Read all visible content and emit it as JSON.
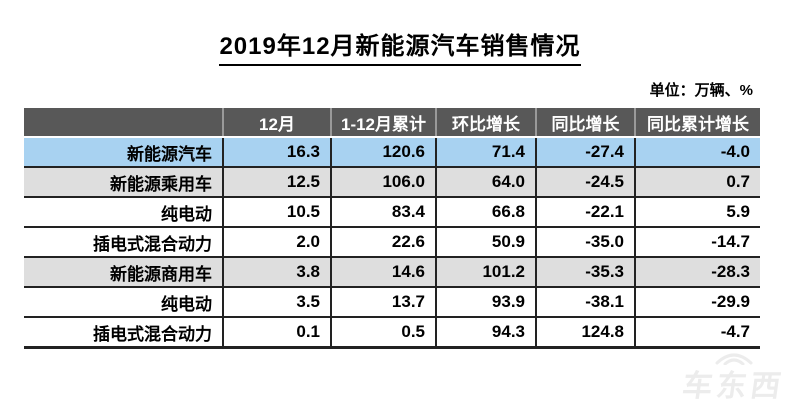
{
  "title": "2019年12月新能源汽车销售情况",
  "unit_label": "单位：万辆、%",
  "watermark": {
    "text": "车东西"
  },
  "colors": {
    "header_bg": "#585858",
    "header_text": "#ffffff",
    "row_highlight": "#a8d2f1",
    "row_group": "#dedede",
    "border": "#222222"
  },
  "chart_data": {
    "type": "table",
    "title": "2019年12月新能源汽车销售情况",
    "unit": "万辆、%",
    "columns": [
      "",
      "12月",
      "1-12月累计",
      "环比增长",
      "同比增长",
      "同比累计增长"
    ],
    "rows": [
      {
        "label": "新能源汽车",
        "indent": 0,
        "style": "highlight",
        "values": [
          "16.3",
          "120.6",
          "71.4",
          "-27.4",
          "-4.0"
        ]
      },
      {
        "label": "新能源乘用车",
        "indent": 1,
        "style": "group",
        "values": [
          "12.5",
          "106.0",
          "64.0",
          "-24.5",
          "0.7"
        ]
      },
      {
        "label": "纯电动",
        "indent": 2,
        "style": "plain",
        "values": [
          "10.5",
          "83.4",
          "66.8",
          "-22.1",
          "5.9"
        ]
      },
      {
        "label": "插电式混合动力",
        "indent": 2,
        "style": "plain",
        "values": [
          "2.0",
          "22.6",
          "50.9",
          "-35.0",
          "-14.7"
        ]
      },
      {
        "label": "新能源商用车",
        "indent": 1,
        "style": "group",
        "values": [
          "3.8",
          "14.6",
          "101.2",
          "-35.3",
          "-28.3"
        ]
      },
      {
        "label": "纯电动",
        "indent": 2,
        "style": "plain",
        "values": [
          "3.5",
          "13.7",
          "93.9",
          "-38.1",
          "-29.9"
        ]
      },
      {
        "label": "插电式混合动力",
        "indent": 2,
        "style": "plain",
        "values": [
          "0.1",
          "0.5",
          "94.3",
          "124.8",
          "-4.7"
        ]
      }
    ]
  }
}
